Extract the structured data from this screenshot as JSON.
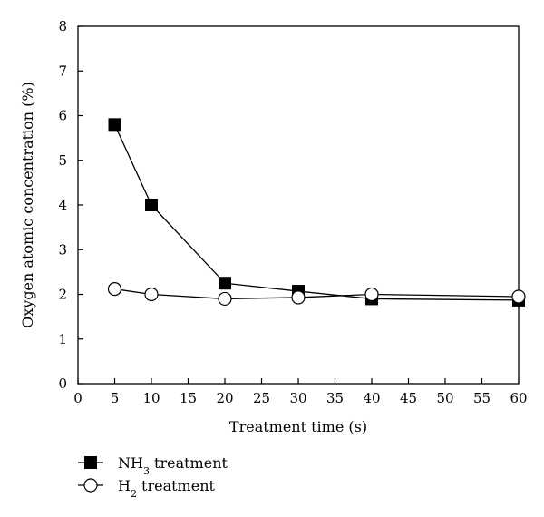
{
  "chart_data": {
    "type": "line",
    "xlabel": "Treatment time (s)",
    "ylabel": "Oxygen atomic concentration (%)",
    "xlim": [
      0,
      60
    ],
    "ylim": [
      0,
      8
    ],
    "xticks": [
      0,
      5,
      10,
      15,
      20,
      25,
      30,
      35,
      40,
      45,
      50,
      55,
      60
    ],
    "yticks": [
      0,
      1,
      2,
      3,
      4,
      5,
      6,
      7,
      8
    ],
    "grid": false,
    "legend_position": "bottom-left-below-plot",
    "series": [
      {
        "name_main": "NH",
        "name_sub": "3",
        "name_rest": " treatment",
        "marker": "filled-square",
        "color": "#000000",
        "x": [
          5,
          10,
          20,
          30,
          40,
          60
        ],
        "y": [
          5.8,
          4.0,
          2.25,
          2.07,
          1.9,
          1.87
        ]
      },
      {
        "name_main": "H",
        "name_sub": "2",
        "name_rest": " treatment",
        "marker": "open-circle",
        "color": "#000000",
        "x": [
          5,
          10,
          20,
          30,
          40,
          60
        ],
        "y": [
          2.12,
          2.0,
          1.9,
          1.93,
          2.0,
          1.95
        ]
      }
    ]
  }
}
